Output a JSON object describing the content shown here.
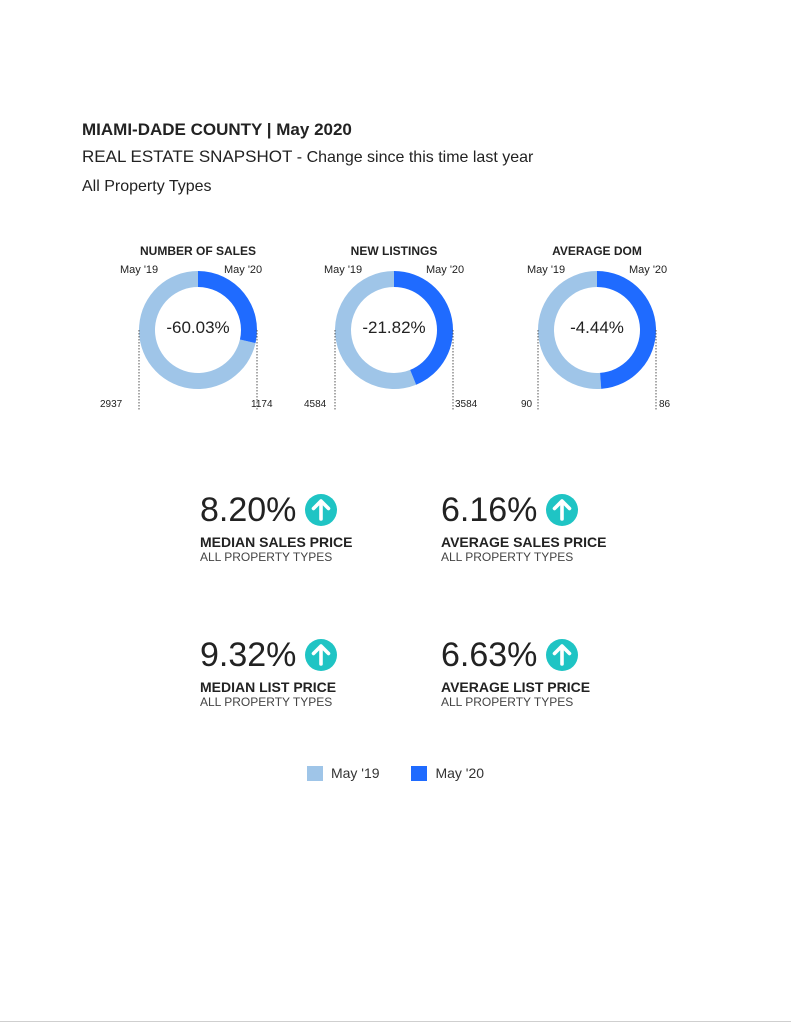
{
  "header": {
    "title": "MIAMI-DADE COUNTY | May 2020",
    "snapshot": "REAL ESTATE SNAPSHOT",
    "change_text": " - Change since this time last year",
    "property_types": "All Property Types"
  },
  "colors": {
    "may19": "#9fc5e8",
    "may20": "#1f6bff",
    "arrow": "#1fc4c4"
  },
  "chart_data": [
    {
      "type": "pie",
      "title": "NUMBER OF SALES",
      "categories": [
        "May '19",
        "May '20"
      ],
      "values": [
        2937,
        1174
      ],
      "value_labels": [
        "2937",
        "1174"
      ],
      "center_label": "-60.03%"
    },
    {
      "type": "pie",
      "title": "NEW LISTINGS",
      "categories": [
        "May '19",
        "May '20"
      ],
      "values": [
        4584,
        3584
      ],
      "value_labels": [
        "4584",
        "3584"
      ],
      "center_label": "-21.82%"
    },
    {
      "type": "pie",
      "title": "AVERAGE DOM",
      "categories": [
        "May '19",
        "May '20"
      ],
      "values": [
        90,
        86
      ],
      "value_labels": [
        "90",
        "86"
      ],
      "center_label": "-4.44%"
    }
  ],
  "kpis": [
    {
      "value": "8.20%",
      "label": "MEDIAN SALES PRICE",
      "sub": "ALL PROPERTY TYPES",
      "arrow": "arrow-up-icon"
    },
    {
      "value": "6.16%",
      "label": "AVERAGE SALES PRICE",
      "sub": "ALL PROPERTY TYPES",
      "arrow": "arrow-up-icon"
    },
    {
      "value": "9.32%",
      "label": "MEDIAN LIST PRICE",
      "sub": "ALL PROPERTY TYPES",
      "arrow": "arrow-up-icon"
    },
    {
      "value": "6.63%",
      "label": "AVERAGE LIST PRICE",
      "sub": "ALL PROPERTY TYPES",
      "arrow": "arrow-up-icon"
    }
  ],
  "legend": [
    {
      "label": "May '19"
    },
    {
      "label": "May '20"
    }
  ]
}
